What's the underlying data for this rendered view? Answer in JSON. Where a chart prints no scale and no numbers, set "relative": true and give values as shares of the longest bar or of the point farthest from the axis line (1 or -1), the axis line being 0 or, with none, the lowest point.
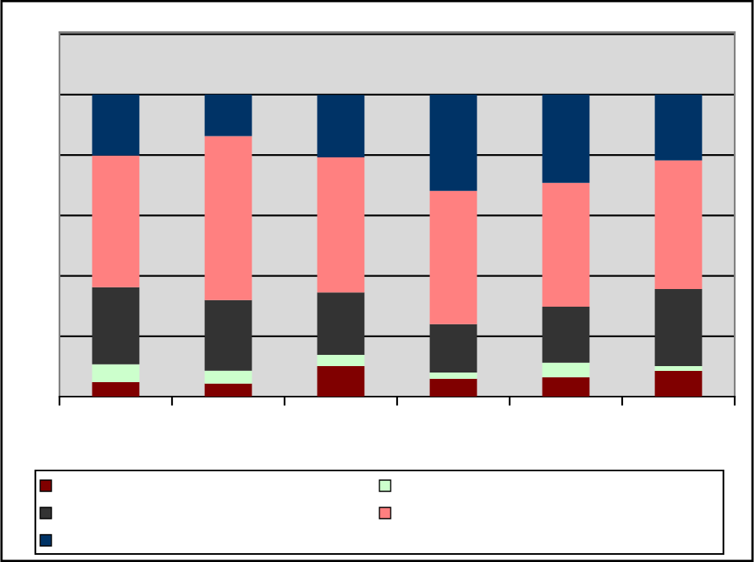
{
  "chart_data": {
    "type": "bar",
    "stacked": true,
    "relative": true,
    "grid": "y",
    "categories": [
      null,
      null,
      null,
      null,
      null,
      null
    ],
    "series": [
      {
        "color": "#800000",
        "values": [
          0.048,
          0.043,
          0.101,
          0.059,
          0.064,
          0.085
        ]
      },
      {
        "color": "#ccffcc",
        "values": [
          0.059,
          0.043,
          0.037,
          0.021,
          0.048,
          0.016
        ]
      },
      {
        "color": "#333333",
        "values": [
          0.255,
          0.234,
          0.207,
          0.16,
          0.186,
          0.255
        ]
      },
      {
        "color": "#ff8080",
        "values": [
          0.436,
          0.543,
          0.447,
          0.441,
          0.41,
          0.426
        ]
      },
      {
        "color": "#003366",
        "values": [
          0.202,
          0.137,
          0.207,
          0.319,
          0.292,
          0.218
        ]
      }
    ]
  }
}
